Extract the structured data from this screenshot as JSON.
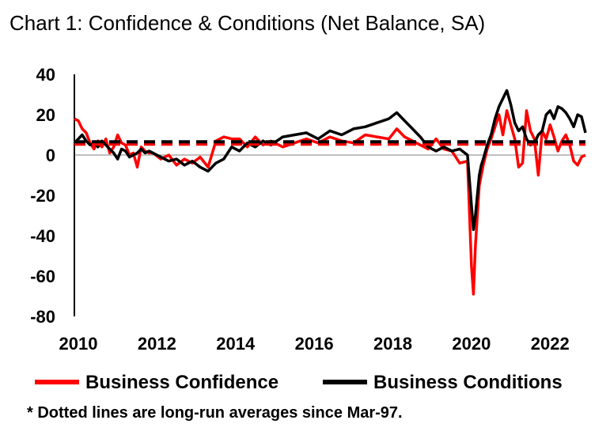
{
  "title": "Chart 1: Confidence & Conditions (Net Balance, SA)",
  "footnote": "* Dotted lines are long-run averages since Mar-97.",
  "chart_data": {
    "type": "line",
    "title": "Chart 1: Confidence & Conditions (Net Balance, SA)",
    "xlabel": "",
    "ylabel": "",
    "xlim": [
      2010.0,
      2023.0
    ],
    "ylim": [
      -80,
      40
    ],
    "yticks": [
      40,
      20,
      0,
      -20,
      -40,
      -60,
      -80
    ],
    "xticks": [
      2010,
      2012,
      2014,
      2016,
      2018,
      2020,
      2022
    ],
    "grid": false,
    "legend_position": "bottom",
    "series": [
      {
        "name": "Business Confidence",
        "color": "#ff0000",
        "x": [
          2010.0,
          2010.1,
          2010.2,
          2010.3,
          2010.4,
          2010.5,
          2010.6,
          2010.7,
          2010.8,
          2010.9,
          2011.0,
          2011.1,
          2011.2,
          2011.3,
          2011.4,
          2011.5,
          2011.6,
          2011.7,
          2011.8,
          2011.9,
          2012.0,
          2012.2,
          2012.4,
          2012.6,
          2012.8,
          2013.0,
          2013.2,
          2013.4,
          2013.6,
          2013.8,
          2014.0,
          2014.2,
          2014.4,
          2014.6,
          2014.8,
          2015.0,
          2015.3,
          2015.6,
          2015.9,
          2016.2,
          2016.5,
          2016.8,
          2017.1,
          2017.4,
          2017.7,
          2018.0,
          2018.2,
          2018.4,
          2018.6,
          2018.8,
          2019.0,
          2019.2,
          2019.4,
          2019.6,
          2019.8,
          2020.0,
          2020.1,
          2020.15,
          2020.2,
          2020.25,
          2020.3,
          2020.35,
          2020.4,
          2020.5,
          2020.6,
          2020.7,
          2020.8,
          2020.9,
          2021.0,
          2021.1,
          2021.2,
          2021.3,
          2021.4,
          2021.5,
          2021.6,
          2021.7,
          2021.8,
          2021.9,
          2022.0,
          2022.1,
          2022.2,
          2022.3,
          2022.4,
          2022.5,
          2022.6,
          2022.7,
          2022.8,
          2022.9,
          2023.0
        ],
        "values": [
          18,
          17,
          13,
          11,
          6,
          3,
          7,
          4,
          8,
          1,
          4,
          10,
          6,
          5,
          0,
          1,
          -6,
          4,
          2,
          1,
          1,
          -2,
          0,
          -5,
          -2,
          -4,
          -1,
          -6,
          7,
          9,
          8,
          8,
          4,
          9,
          5,
          7,
          4,
          6,
          8,
          6,
          9,
          7,
          6,
          10,
          9,
          8,
          13,
          9,
          7,
          5,
          3,
          8,
          3,
          2,
          -4,
          -3,
          -55,
          -69,
          -45,
          -30,
          -15,
          -10,
          -5,
          3,
          8,
          14,
          20,
          10,
          22,
          15,
          8,
          -6,
          -4,
          22,
          12,
          8,
          -10,
          12,
          8,
          15,
          9,
          2,
          7,
          10,
          5,
          -3,
          -5,
          -1,
          0
        ]
      },
      {
        "name": "Business Conditions",
        "color": "#000000",
        "x": [
          2010.0,
          2010.1,
          2010.2,
          2010.3,
          2010.4,
          2010.5,
          2010.6,
          2010.7,
          2010.8,
          2010.9,
          2011.0,
          2011.1,
          2011.2,
          2011.3,
          2011.4,
          2011.5,
          2011.6,
          2011.7,
          2011.8,
          2011.9,
          2012.0,
          2012.2,
          2012.4,
          2012.6,
          2012.8,
          2013.0,
          2013.2,
          2013.4,
          2013.6,
          2013.8,
          2014.0,
          2014.2,
          2014.4,
          2014.6,
          2014.8,
          2015.0,
          2015.3,
          2015.6,
          2015.9,
          2016.2,
          2016.5,
          2016.8,
          2017.1,
          2017.4,
          2017.7,
          2018.0,
          2018.2,
          2018.4,
          2018.6,
          2018.8,
          2019.0,
          2019.2,
          2019.4,
          2019.6,
          2019.8,
          2020.0,
          2020.1,
          2020.15,
          2020.2,
          2020.25,
          2020.3,
          2020.35,
          2020.4,
          2020.5,
          2020.6,
          2020.7,
          2020.8,
          2020.9,
          2021.0,
          2021.1,
          2021.2,
          2021.3,
          2021.4,
          2021.5,
          2021.6,
          2021.7,
          2021.8,
          2021.9,
          2022.0,
          2022.1,
          2022.2,
          2022.3,
          2022.4,
          2022.5,
          2022.6,
          2022.7,
          2022.8,
          2022.9,
          2023.0
        ],
        "values": [
          6,
          8,
          10,
          7,
          5,
          6,
          4,
          7,
          5,
          3,
          1,
          -2,
          3,
          2,
          -1,
          0,
          1,
          3,
          1,
          2,
          1,
          -1,
          -3,
          -2,
          -5,
          -3,
          -6,
          -8,
          -4,
          -2,
          4,
          2,
          6,
          4,
          7,
          5,
          9,
          10,
          11,
          8,
          12,
          10,
          13,
          14,
          16,
          18,
          21,
          17,
          13,
          9,
          4,
          2,
          4,
          2,
          3,
          0,
          -25,
          -37,
          -30,
          -20,
          -10,
          -5,
          -2,
          5,
          10,
          18,
          24,
          28,
          32,
          25,
          16,
          12,
          14,
          8,
          5,
          6,
          10,
          12,
          20,
          22,
          18,
          24,
          23,
          21,
          18,
          14,
          20,
          19,
          11
        ]
      }
    ],
    "reference_lines": [
      {
        "series": "Business Confidence",
        "value": 6,
        "style": "dashed",
        "color": "#ff0000"
      },
      {
        "series": "Business Conditions",
        "value": 6,
        "style": "dashed",
        "color": "#000000"
      }
    ]
  }
}
